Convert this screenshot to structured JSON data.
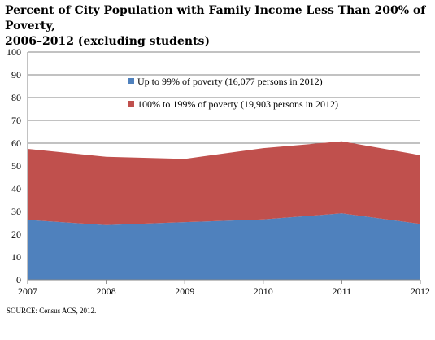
{
  "chart_data": {
    "type": "area",
    "stacked": true,
    "title_line1": "Percent of City Population with Family Income Less Than 200% of Poverty,",
    "title_line2": "2006–2012 (excluding students)",
    "x": [
      "2007",
      "2008",
      "2009",
      "2010",
      "2011",
      "2012"
    ],
    "ylim": [
      0,
      100
    ],
    "yticks": [
      "0",
      "10",
      "20",
      "30",
      "40",
      "50",
      "60",
      "70",
      "80",
      "90",
      "100"
    ],
    "grid": true,
    "legend_position": "inside-top-center",
    "series": [
      {
        "name": "Up to 99% of poverty (16,077 persons in 2012)",
        "values": [
          26.3,
          24.0,
          25.3,
          26.5,
          29.2,
          24.5
        ],
        "color": "#4f81bd"
      },
      {
        "name": "100% to 199% of poverty (19,903 persons in 2012)",
        "values": [
          31.2,
          30.0,
          27.8,
          31.3,
          31.6,
          30.2
        ],
        "color": "#c0504d"
      }
    ],
    "source": "SOURCE:  Census ACS, 2012."
  }
}
